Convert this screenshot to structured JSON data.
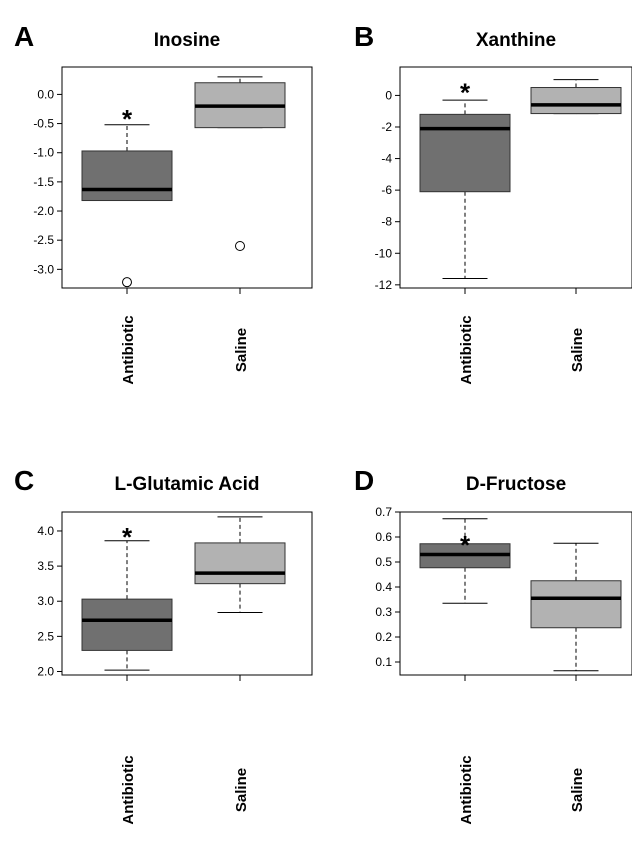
{
  "chart_data": [
    {
      "panel": "A",
      "type": "boxplot",
      "title": "Inosine",
      "categories": [
        "Antibiotic",
        "Saline"
      ],
      "yticks": [
        0.0,
        -0.5,
        -1.0,
        -1.5,
        -2.0,
        -2.5,
        -3.0
      ],
      "ytick_labels": [
        "0.0",
        "-0.5",
        "-1.0",
        "-1.5",
        "-2.0",
        "-2.5",
        "-3.0"
      ],
      "ylim": [
        -3.32,
        0.47
      ],
      "boxes": [
        {
          "category": "Antibiotic",
          "whisker_low": -1.82,
          "q1": -1.82,
          "median": -1.63,
          "q3": -0.97,
          "whisker_high": -0.52,
          "outliers": [
            -3.22
          ],
          "color": "#707070"
        },
        {
          "category": "Saline",
          "whisker_low": -0.57,
          "q1": -0.57,
          "median": -0.2,
          "q3": 0.2,
          "whisker_high": 0.3,
          "outliers": [
            -2.6
          ],
          "color": "#b2b2b2"
        }
      ],
      "annotation": {
        "text": "*",
        "category": "Antibiotic",
        "y": -0.35
      }
    },
    {
      "panel": "B",
      "type": "boxplot",
      "title": "Xanthine",
      "categories": [
        "Antibiotic",
        "Saline"
      ],
      "yticks": [
        0,
        -2,
        -4,
        -6,
        -8,
        -10,
        -12
      ],
      "ytick_labels": [
        "0",
        "-2",
        "-4",
        "-6",
        "-8",
        "-10",
        "-12"
      ],
      "ylim": [
        -12.2,
        1.8
      ],
      "boxes": [
        {
          "category": "Antibiotic",
          "whisker_low": -11.6,
          "q1": -6.1,
          "median": -2.1,
          "q3": -1.2,
          "whisker_high": -0.3,
          "outliers": [],
          "color": "#707070"
        },
        {
          "category": "Saline",
          "whisker_low": -1.15,
          "q1": -1.15,
          "median": -0.6,
          "q3": 0.5,
          "whisker_high": 1.0,
          "outliers": [],
          "color": "#b2b2b2"
        }
      ],
      "annotation": {
        "text": "*",
        "category": "Antibiotic",
        "y": 0.45
      }
    },
    {
      "panel": "C",
      "type": "boxplot",
      "title": "L-Glutamic Acid",
      "categories": [
        "Antibiotic",
        "Saline"
      ],
      "yticks": [
        2.0,
        2.5,
        3.0,
        3.5,
        4.0
      ],
      "ytick_labels": [
        "2.0",
        "2.5",
        "3.0",
        "3.5",
        "4.0"
      ],
      "ylim": [
        1.95,
        4.27
      ],
      "boxes": [
        {
          "category": "Antibiotic",
          "whisker_low": 2.02,
          "q1": 2.3,
          "median": 2.73,
          "q3": 3.03,
          "whisker_high": 3.86,
          "outliers": [],
          "color": "#707070"
        },
        {
          "category": "Saline",
          "whisker_low": 2.84,
          "q1": 3.25,
          "median": 3.4,
          "q3": 3.83,
          "whisker_high": 4.2,
          "outliers": [],
          "color": "#b2b2b2"
        }
      ],
      "annotation": {
        "text": "*",
        "category": "Antibiotic",
        "y": 3.97
      }
    },
    {
      "panel": "D",
      "type": "boxplot",
      "title": "D-Fructose",
      "categories": [
        "Antibiotic",
        "Saline"
      ],
      "yticks": [
        0.1,
        0.2,
        0.3,
        0.4,
        0.5,
        0.6,
        0.7
      ],
      "ytick_labels": [
        "0.1",
        "0.2",
        "0.3",
        "0.4",
        "0.5",
        "0.6",
        "0.7"
      ],
      "ylim": [
        0.048,
        0.7
      ],
      "boxes": [
        {
          "category": "Antibiotic",
          "whisker_low": 0.335,
          "q1": 0.477,
          "median": 0.53,
          "q3": 0.573,
          "whisker_high": 0.673,
          "outliers": [],
          "color": "#707070"
        },
        {
          "category": "Saline",
          "whisker_low": 0.065,
          "q1": 0.237,
          "median": 0.355,
          "q3": 0.425,
          "whisker_high": 0.575,
          "outliers": [],
          "color": "#b2b2b2"
        }
      ],
      "annotation": {
        "text": "*",
        "category": "Antibiotic",
        "y": 0.585
      }
    }
  ]
}
